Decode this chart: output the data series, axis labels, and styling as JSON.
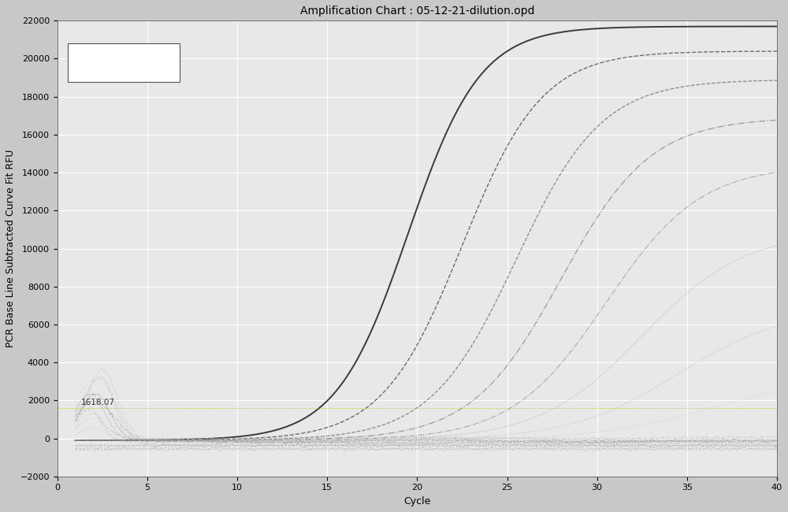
{
  "title": "Amplification Chart : 05-12-21-dilution.opd",
  "xlabel": "Cycle",
  "ylabel": "PCR Base Line Subtracted Curve Fit RFU",
  "xlim": [
    1,
    40
  ],
  "ylim": [
    -2000,
    22000
  ],
  "yticks": [
    -2000,
    0,
    2000,
    4000,
    6000,
    8000,
    10000,
    12000,
    14000,
    16000,
    18000,
    20000,
    22000
  ],
  "xticks": [
    0,
    5,
    10,
    15,
    20,
    25,
    30,
    35,
    40
  ],
  "threshold_y": 1618.07,
  "threshold_label": "1618.07",
  "fig_bg": "#c8c8c8",
  "plot_bg": "#e8e8e8",
  "grid_color": "#ffffff",
  "title_fontsize": 10,
  "axis_label_fontsize": 9,
  "tick_fontsize": 8,
  "sigmoid_curves": [
    {
      "L": 21800,
      "x0": 19.5,
      "k": 0.5,
      "b": -100,
      "color": "#3a3a3a",
      "lw": 1.4,
      "ls": "-",
      "alpha": 1.0
    },
    {
      "L": 20500,
      "x0": 22.5,
      "k": 0.45,
      "b": -100,
      "color": "#555555",
      "lw": 1.0,
      "ls": "--",
      "alpha": 0.85
    },
    {
      "L": 19000,
      "x0": 25.5,
      "k": 0.42,
      "b": -100,
      "color": "#666666",
      "lw": 0.9,
      "ls": "--",
      "alpha": 0.75
    },
    {
      "L": 17000,
      "x0": 28.0,
      "k": 0.4,
      "b": -100,
      "color": "#777777",
      "lw": 0.9,
      "ls": "-.",
      "alpha": 0.7
    },
    {
      "L": 14500,
      "x0": 30.5,
      "k": 0.38,
      "b": -100,
      "color": "#888888",
      "lw": 0.8,
      "ls": "-.",
      "alpha": 0.65
    },
    {
      "L": 11000,
      "x0": 32.5,
      "k": 0.35,
      "b": -100,
      "color": "#999999",
      "lw": 0.8,
      "ls": ":",
      "alpha": 0.65
    },
    {
      "L": 7000,
      "x0": 34.5,
      "k": 0.33,
      "b": -100,
      "color": "#aaaaaa",
      "lw": 0.8,
      "ls": ":",
      "alpha": 0.6
    },
    {
      "L": 3500,
      "x0": 36.5,
      "k": 0.3,
      "b": -100,
      "color": "#bbbbbb",
      "lw": 0.7,
      "ls": ":",
      "alpha": 0.55
    }
  ],
  "noise_seeds": [
    0,
    1,
    2,
    3,
    4,
    5,
    6,
    7,
    8,
    9,
    10,
    11
  ],
  "flat_seeds": [
    20,
    21,
    22,
    23
  ]
}
